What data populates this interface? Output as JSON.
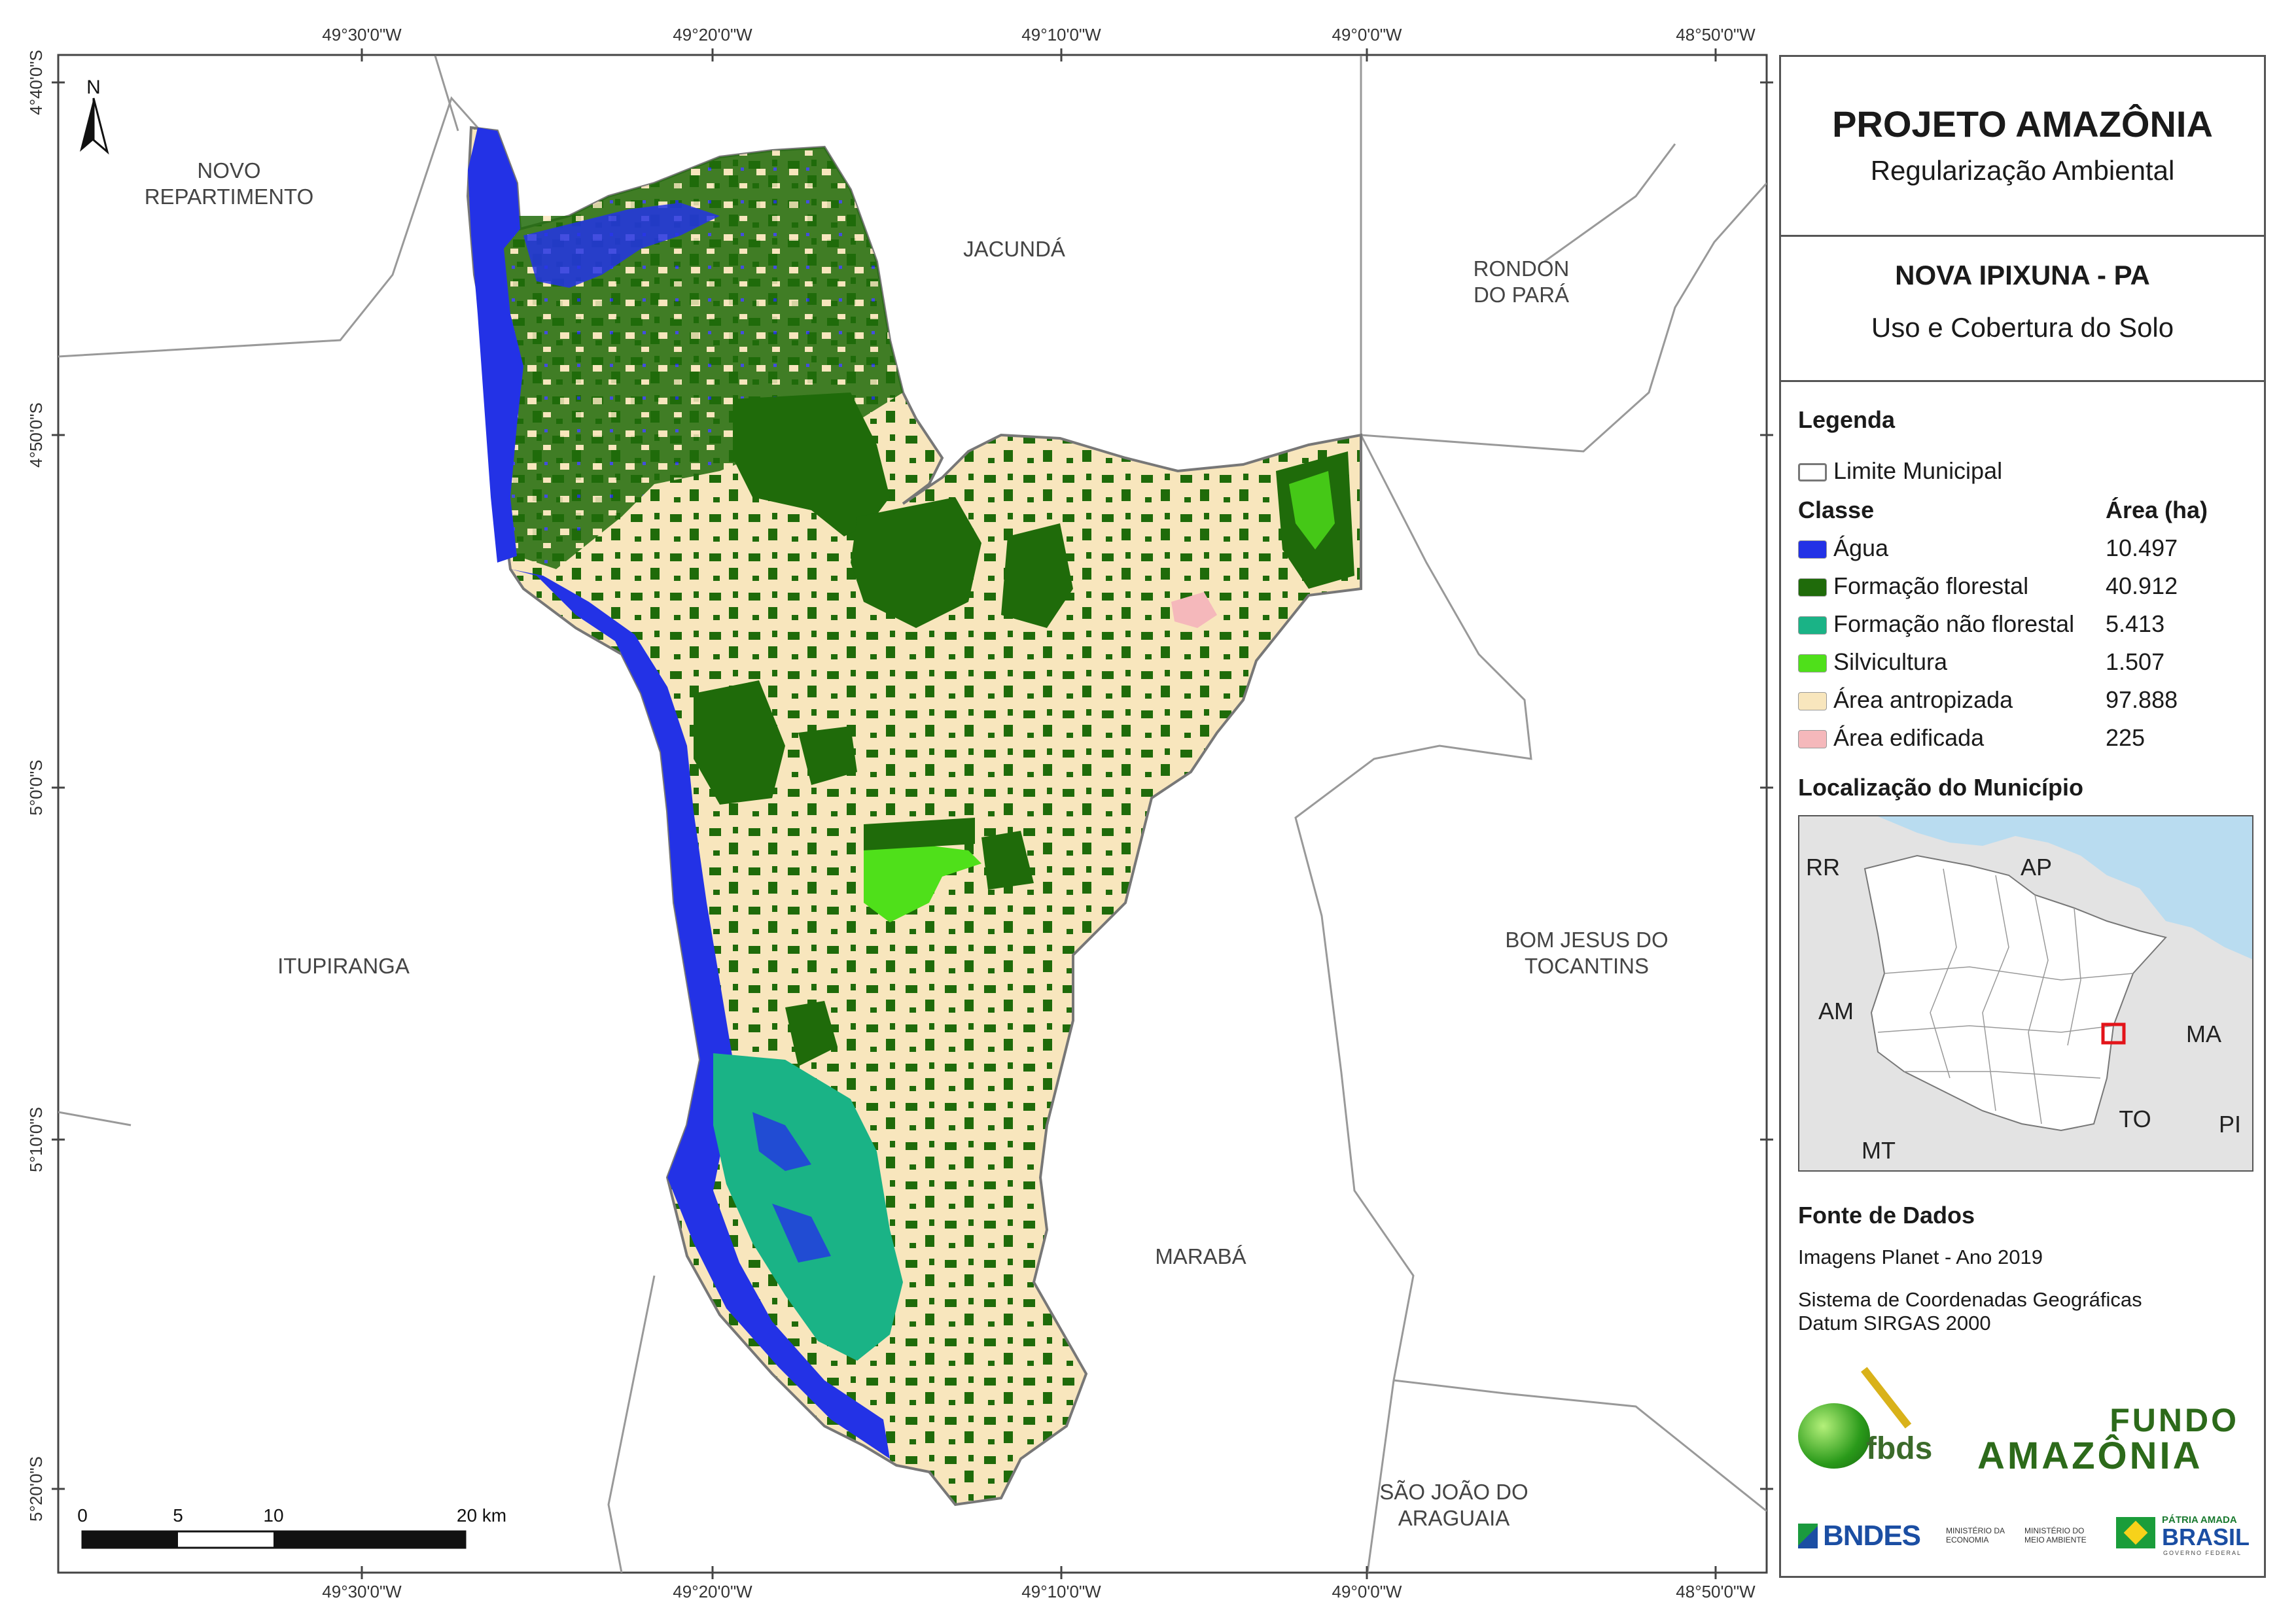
{
  "coords": {
    "lon_labels": [
      "49°30'0\"W",
      "49°20'0\"W",
      "49°10'0\"W",
      "49°0'0\"W",
      "48°50'0\"W"
    ],
    "lat_labels": [
      "4°40'0\"S",
      "4°50'0\"S",
      "5°0'0\"S",
      "5°10'0\"S",
      "5°20'0\"S"
    ]
  },
  "neighbors": {
    "novo_repartimento": [
      "NOVO",
      "REPARTIMENTO"
    ],
    "jacunda": "JACUNDÁ",
    "rondon": [
      "RONDON",
      "DO PARÁ"
    ],
    "itupiranga": "ITUPIRANGA",
    "bom_jesus": [
      "BOM JESUS DO",
      "TOCANTINS"
    ],
    "maraba": "MARABÁ",
    "sao_joao": [
      "SÃO JOÃO DO",
      "ARAGUAIA"
    ]
  },
  "north_arrow": "N",
  "scale_bar": {
    "ticks": [
      "0",
      "5",
      "10",
      "20 km"
    ]
  },
  "header": {
    "project": "PROJETO AMAZÔNIA",
    "subtitle": "Regularização Ambiental",
    "municipality": "NOVA IPIXUNA - PA",
    "theme": "Uso e Cobertura do Solo"
  },
  "legend": {
    "title": "Legenda",
    "boundary_label": "Limite Municipal",
    "class_header": "Classe",
    "area_header": "Área (ha)",
    "classes": [
      {
        "label": "Água",
        "area": "10.497",
        "color": "#2332e6"
      },
      {
        "label": "Formação florestal",
        "area": "40.912",
        "color": "#1f6b0a"
      },
      {
        "label": "Formação não florestal",
        "area": "5.413",
        "color": "#1ab386"
      },
      {
        "label": "Silvicultura",
        "area": "1.507",
        "color": "#4fe01a"
      },
      {
        "label": "Área antropizada",
        "area": "97.888",
        "color": "#f8e6bd"
      },
      {
        "label": "Área edificada",
        "area": "225",
        "color": "#f5b8bb"
      }
    ]
  },
  "location": {
    "title": "Localização do Município",
    "states": [
      "RR",
      "AP",
      "AM",
      "MA",
      "TO",
      "PI",
      "MT"
    ]
  },
  "sources": {
    "title": "Fonte de Dados",
    "imagery": "Imagens Planet - Ano 2019",
    "crs_line1": "Sistema de Coordenadas Geográficas",
    "crs_line2": "Datum SIRGAS 2000"
  },
  "logos": {
    "fbds": "fbds",
    "fundo_line1": "FUNDO",
    "fundo_line2": "AMAZÔNIA",
    "bndes": "BNDES",
    "min_economia": "MINISTÉRIO DA ECONOMIA",
    "min_ambiente": "MINISTÉRIO DO MEIO AMBIENTE",
    "patria_line1": "PÁTRIA AMADA",
    "patria_line2": "BRASIL",
    "governo": "GOVERNO FEDERAL"
  }
}
